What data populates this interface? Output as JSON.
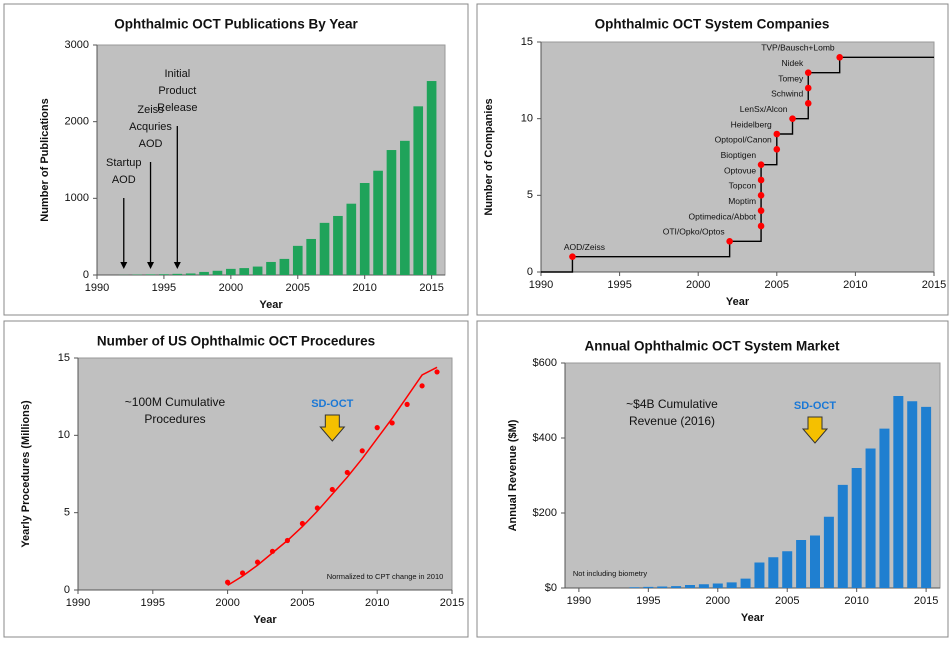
{
  "chart_data": [
    {
      "type": "bar",
      "title": "Ophthalmic OCT Publications By Year",
      "x_label": "Year",
      "y_label": "Number of Publications",
      "x": [
        1992,
        1993,
        1994,
        1995,
        1996,
        1997,
        1998,
        1999,
        2000,
        2001,
        2002,
        2003,
        2004,
        2005,
        2006,
        2007,
        2008,
        2009,
        2010,
        2011,
        2012,
        2013,
        2014,
        2015
      ],
      "values": [
        2,
        5,
        8,
        10,
        15,
        20,
        40,
        55,
        80,
        90,
        110,
        170,
        210,
        380,
        470,
        680,
        770,
        930,
        1200,
        1360,
        1630,
        1750,
        2200,
        2530
      ],
      "color": "#1fa35a",
      "xlim": [
        1990,
        2016
      ],
      "xticks": [
        1990,
        1995,
        2000,
        2005,
        2010,
        2015
      ],
      "ylim": [
        0,
        3000
      ],
      "yticks": [
        0,
        1000,
        2000,
        3000
      ],
      "grid": false,
      "annotations": [
        {
          "lines": [
            "Startup",
            "AOD"
          ],
          "x": 1992
        },
        {
          "lines": [
            "Zeiss",
            "Acquries",
            "AOD"
          ],
          "x": 1994
        },
        {
          "lines": [
            "Initial",
            "Product",
            "Release"
          ],
          "x": 1996
        }
      ]
    },
    {
      "type": "line",
      "step": true,
      "title": "Ophthalmic OCT System Companies",
      "x_label": "Year",
      "y_label": "Number of Companies",
      "x": [
        1992,
        2002,
        2004,
        2004,
        2004,
        2004,
        2004,
        2005,
        2005,
        2006,
        2007,
        2007,
        2007,
        2009
      ],
      "values": [
        1,
        2,
        3,
        4,
        5,
        6,
        7,
        8,
        9,
        10,
        11,
        12,
        13,
        14
      ],
      "point_labels": [
        "AOD/Zeiss",
        "OTI/Opko/Optos",
        "Optimedica/Abbot",
        "Moptim",
        "Topcon",
        "Optovue",
        "Bioptigen",
        "Optopol/Canon",
        "Heidelberg",
        "LenSx/Alcon",
        "Schwind",
        "Tomey",
        "Nidek",
        "TVP/Bausch+Lomb"
      ],
      "color": "#000000",
      "marker_color": "#ff0000",
      "xlim": [
        1990,
        2015
      ],
      "xticks": [
        1990,
        1995,
        2000,
        2005,
        2010,
        2015
      ],
      "ylim": [
        0,
        15
      ],
      "yticks": [
        0,
        5,
        10,
        15
      ],
      "grid": false
    },
    {
      "type": "scatter",
      "title": "Number of US Ophthalmic OCT Procedures",
      "x_label": "Year",
      "y_label": "Yearly Procedures (Millions)",
      "x": [
        2000,
        2001,
        2002,
        2003,
        2004,
        2005,
        2006,
        2007,
        2008,
        2009,
        2010,
        2011,
        2012,
        2013,
        2014
      ],
      "values": [
        0.5,
        1.1,
        1.8,
        2.5,
        3.2,
        4.3,
        5.3,
        6.5,
        7.6,
        9.0,
        10.5,
        10.8,
        12.0,
        13.2,
        14.1
      ],
      "color": "#ff0000",
      "fit": {
        "color": "#ff0000",
        "x": [
          2000,
          2001,
          2002,
          2003,
          2004,
          2005,
          2006,
          2007,
          2008,
          2009,
          2010,
          2011,
          2012,
          2013,
          2014
        ],
        "values": [
          0.3,
          0.9,
          1.6,
          2.4,
          3.2,
          4.1,
          5.1,
          6.2,
          7.3,
          8.5,
          9.8,
          11.1,
          12.5,
          13.9,
          14.4
        ]
      },
      "xlim": [
        1990,
        2015
      ],
      "xticks": [
        1990,
        1995,
        2000,
        2005,
        2010,
        2015
      ],
      "ylim": [
        0,
        15
      ],
      "yticks": [
        0,
        5,
        10,
        15
      ],
      "grid": false,
      "annotations": [
        {
          "lines": [
            "~100M Cumulative",
            "Procedures"
          ]
        },
        {
          "lines": [
            "SD-OCT"
          ],
          "x": 2007
        },
        {
          "lines": [
            "Normalized to CPT change in 2010"
          ]
        }
      ]
    },
    {
      "type": "bar",
      "title": "Annual Ophthalmic OCT System Market",
      "x_label": "Year",
      "y_label": "Annual Revenue ($M)",
      "x": [
        1994,
        1995,
        1996,
        1997,
        1998,
        1999,
        2000,
        2001,
        2002,
        2003,
        2004,
        2005,
        2006,
        2007,
        2008,
        2009,
        2010,
        2011,
        2012,
        2013,
        2014,
        2015
      ],
      "values": [
        2,
        3,
        4,
        5,
        8,
        10,
        12,
        15,
        25,
        68,
        82,
        98,
        128,
        140,
        190,
        275,
        320,
        372,
        425,
        512,
        498,
        483
      ],
      "color": "#1f7fd0",
      "xlim": [
        1989,
        2016
      ],
      "xticks": [
        1990,
        1995,
        2000,
        2005,
        2010,
        2015
      ],
      "ylim": [
        0,
        600
      ],
      "yticks": [
        {
          "value": 0,
          "label": "$0"
        },
        {
          "value": 200,
          "label": "$200"
        },
        {
          "value": 400,
          "label": "$400"
        },
        {
          "value": 600,
          "label": "$600"
        }
      ],
      "grid": false,
      "annotations": [
        {
          "lines": [
            "~$4B Cumulative",
            "Revenue (2016)"
          ]
        },
        {
          "lines": [
            "SD-OCT"
          ],
          "x": 2007
        },
        {
          "lines": [
            "Not including biometry"
          ]
        }
      ]
    }
  ]
}
